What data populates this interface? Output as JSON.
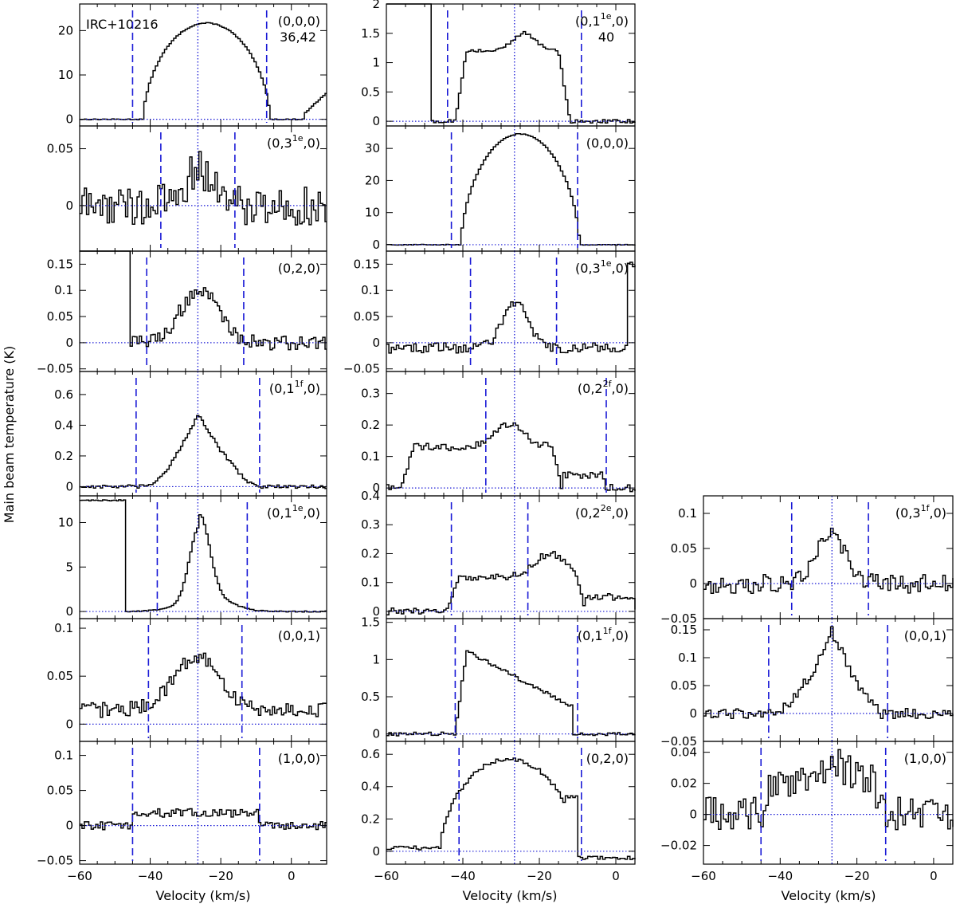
{
  "colors": {
    "spectrum": "#000000",
    "guide": "#1a1ad6",
    "axes": "#000000"
  },
  "figure": {
    "ylabel": "Main beam temperature (K)",
    "xlabel": "Velocity  (km/s)",
    "source_label": "IRC+10216"
  },
  "chart_data": [
    {
      "type": "line",
      "drawstyle": "steps",
      "column": 0,
      "row": 0,
      "label": "(0,0,0)",
      "label_sub": "36,42",
      "xlim": [
        -60,
        10
      ],
      "ylim": [
        -1.5,
        26
      ],
      "yticks": [
        0,
        10,
        20
      ],
      "ytick_labels": [
        "0",
        "10",
        "20"
      ],
      "xticks": [
        -60,
        -40,
        -20,
        0
      ],
      "xtick_labels": [
        "",
        "",
        "",
        ""
      ],
      "dashed_lines": [
        -45,
        -7
      ],
      "center_velocity": -26.5,
      "profile": {
        "kind": "parabola",
        "center": -24,
        "half_width": 18,
        "peak": 21.7,
        "noise": 0.1,
        "extra": [
          {
            "v0": 4,
            "v1": 10,
            "y0": 1.5,
            "y1": 6
          }
        ]
      }
    },
    {
      "type": "line",
      "drawstyle": "steps",
      "column": 0,
      "row": 1,
      "label": "(0,3",
      "label_sup": "1e",
      "label_end": ",0)",
      "xlim": [
        -60,
        10
      ],
      "ylim": [
        -0.04,
        0.07
      ],
      "yticks": [
        0,
        0.05
      ],
      "ytick_labels": [
        "0",
        "0.05"
      ],
      "xticks": [
        -60,
        -40,
        -20,
        0
      ],
      "xtick_labels": [
        "",
        "",
        "",
        ""
      ],
      "dashed_lines": [
        -37,
        -16
      ],
      "center_velocity": -26.5,
      "profile": {
        "kind": "gauss",
        "center": -26,
        "sigma": 4.5,
        "peak": 0.03,
        "noise": 0.018
      }
    },
    {
      "type": "line",
      "drawstyle": "steps",
      "column": 0,
      "row": 2,
      "label": "(0,2,0)",
      "xlim": [
        -60,
        10
      ],
      "ylim": [
        -0.055,
        0.175
      ],
      "yticks": [
        -0.05,
        0,
        0.05,
        0.1,
        0.15
      ],
      "ytick_labels": [
        "−0.05",
        "0",
        "0.05",
        "0.1",
        "0.15"
      ],
      "xticks": [
        -60,
        -40,
        -20,
        0
      ],
      "xtick_labels": [
        "",
        "",
        "",
        ""
      ],
      "dashed_lines": [
        -41,
        -13.5
      ],
      "center_velocity": -26.5,
      "profile": {
        "kind": "gauss",
        "center": -26,
        "sigma": 5.5,
        "peak": 0.1,
        "noise": 0.014,
        "wall": {
          "start": -60,
          "end": -46,
          "value": 0.3
        }
      }
    },
    {
      "type": "line",
      "drawstyle": "steps",
      "column": 0,
      "row": 3,
      "label": "(0,1",
      "label_sup": "1f",
      "label_end": ",0)",
      "xlim": [
        -60,
        10
      ],
      "ylim": [
        -0.06,
        0.75
      ],
      "yticks": [
        0,
        0.2,
        0.4,
        0.6
      ],
      "ytick_labels": [
        "0",
        "0.2",
        "0.4",
        "0.6"
      ],
      "xticks": [
        -60,
        -40,
        -20,
        0
      ],
      "xtick_labels": [
        "",
        "",
        "",
        ""
      ],
      "dashed_lines": [
        -44,
        -9
      ],
      "center_velocity": -26.5,
      "profile": {
        "kind": "triangle",
        "center": -26.5,
        "left": 15,
        "right": 17,
        "peak": 0.47,
        "noise": 0.012
      }
    },
    {
      "type": "line",
      "drawstyle": "steps",
      "column": 0,
      "row": 4,
      "label": "(0,1",
      "label_sup": "1e",
      "label_end": ",0)",
      "xlim": [
        -60,
        10
      ],
      "ylim": [
        -0.8,
        13
      ],
      "yticks": [
        0,
        5,
        10
      ],
      "ytick_labels": [
        "0",
        "5",
        "10"
      ],
      "xticks": [
        -60,
        -40,
        -20,
        0
      ],
      "xtick_labels": [
        "",
        "",
        "",
        ""
      ],
      "dashed_lines": [
        -38,
        -12.5
      ],
      "center_velocity": -26.5,
      "profile": {
        "kind": "gauss",
        "center": -26,
        "sigma": 2.8,
        "peak": 8.7,
        "noise": 0.06,
        "wall": {
          "start": -60,
          "end": -47,
          "value": 12.5
        },
        "wing": {
          "peak": 2.2,
          "sigma": 7
        }
      }
    },
    {
      "type": "line",
      "drawstyle": "steps",
      "column": 0,
      "row": 5,
      "label": "(0,0,1)",
      "xlim": [
        -60,
        10
      ],
      "ylim": [
        -0.018,
        0.11
      ],
      "yticks": [
        0,
        0.05,
        0.1
      ],
      "ytick_labels": [
        "0",
        "0.05",
        "0.1"
      ],
      "xticks": [
        -60,
        -40,
        -20,
        0
      ],
      "xtick_labels": [
        "",
        "",
        "",
        ""
      ],
      "dashed_lines": [
        -40.5,
        -14
      ],
      "center_velocity": -26.5,
      "profile": {
        "kind": "gauss",
        "center": -27,
        "sigma": 6.5,
        "peak": 0.055,
        "noise": 0.008,
        "offset": 0.015
      }
    },
    {
      "type": "line",
      "drawstyle": "steps",
      "column": 0,
      "row": 6,
      "label": "(1,0,0)",
      "xlim": [
        -60,
        10
      ],
      "ylim": [
        -0.055,
        0.12
      ],
      "yticks": [
        -0.05,
        0,
        0.05,
        0.1
      ],
      "ytick_labels": [
        "−0.05",
        "0",
        "0.05",
        "0.1"
      ],
      "xticks": [
        -60,
        -40,
        -20,
        0
      ],
      "xtick_labels": [
        "−60",
        "−40",
        "−20",
        "0"
      ],
      "dashed_lines": [
        -45,
        -9
      ],
      "center_velocity": -26.5,
      "profile": {
        "kind": "flat",
        "from": -45,
        "to": -9,
        "level": 0.018,
        "noise": 0.006
      }
    },
    {
      "type": "line",
      "drawstyle": "steps",
      "column": 1,
      "row": 0,
      "label": "(0,1",
      "label_sup": "1e",
      "label_end": ",0)",
      "label_sub": "40",
      "xlim": [
        -60,
        5
      ],
      "ylim": [
        -0.08,
        2
      ],
      "yticks": [
        0,
        0.5,
        1,
        1.5,
        2
      ],
      "ytick_labels": [
        "0",
        "0.5",
        "1",
        "1.5",
        "2"
      ],
      "xticks": [
        -60,
        -40,
        -20,
        0
      ],
      "xtick_labels": [
        "",
        "",
        "",
        ""
      ],
      "dashed_lines": [
        -44,
        -9
      ],
      "center_velocity": -26.5,
      "profile": {
        "kind": "plateau",
        "from": -42,
        "to": -12,
        "level": 1.2,
        "bump": {
          "center": -24,
          "height": 0.3,
          "sigma": 3
        },
        "noise": 0.03,
        "wall": {
          "start": -60,
          "end": -48,
          "value": 2.2
        }
      }
    },
    {
      "type": "line",
      "drawstyle": "steps",
      "column": 1,
      "row": 1,
      "label": "(0,0,0)",
      "xlim": [
        -60,
        5
      ],
      "ylim": [
        -2,
        37
      ],
      "yticks": [
        0,
        10,
        20,
        30
      ],
      "ytick_labels": [
        "0",
        "10",
        "20",
        "30"
      ],
      "xticks": [
        -60,
        -40,
        -20,
        0
      ],
      "xtick_labels": [
        "",
        "",
        "",
        ""
      ],
      "dashed_lines": [
        -43,
        -10
      ],
      "center_velocity": -26.5,
      "profile": {
        "kind": "parabola",
        "center": -25,
        "half_width": 15.5,
        "peak": 34.5,
        "noise": 0.12
      }
    },
    {
      "type": "line",
      "drawstyle": "steps",
      "column": 1,
      "row": 2,
      "label": "(0,3",
      "label_sup": "1e",
      "label_end": ",0)",
      "xlim": [
        -60,
        5
      ],
      "ylim": [
        -0.055,
        0.175
      ],
      "yticks": [
        -0.05,
        0,
        0.05,
        0.1,
        0.15
      ],
      "ytick_labels": [
        "−0.05",
        "0",
        "0.05",
        "0.1",
        "0.15"
      ],
      "xticks": [
        -60,
        -40,
        -20,
        0
      ],
      "xtick_labels": [
        "",
        "",
        "",
        ""
      ],
      "dashed_lines": [
        -38,
        -15.5
      ],
      "center_velocity": -26.5,
      "profile": {
        "kind": "gauss",
        "center": -26.5,
        "sigma": 3.2,
        "peak": 0.09,
        "noise": 0.01,
        "offset": -0.01,
        "tailwall": {
          "start": 3,
          "value": 0.15
        }
      }
    },
    {
      "type": "line",
      "drawstyle": "steps",
      "column": 1,
      "row": 3,
      "label": "(0,2",
      "label_sup": "2f",
      "label_end": ",0)",
      "xlim": [
        -60,
        5
      ],
      "ylim": [
        -0.025,
        0.37
      ],
      "yticks": [
        0,
        0.1,
        0.2,
        0.3
      ],
      "ytick_labels": [
        "0",
        "0.1",
        "0.2",
        "0.3"
      ],
      "xticks": [
        -60,
        -40,
        -20,
        0
      ],
      "xtick_labels": [
        "",
        "",
        "",
        ""
      ],
      "dashed_lines": [
        -34,
        -2.5
      ],
      "center_velocity": -26.5,
      "profile": {
        "kind": "plateau",
        "from": -56,
        "to": -14,
        "level": 0.13,
        "bump": {
          "center": -28,
          "height": 0.07,
          "sigma": 4
        },
        "noise": 0.012,
        "tail": {
          "from": -14,
          "to": -3,
          "level": 0.04
        }
      }
    },
    {
      "type": "line",
      "drawstyle": "steps",
      "column": 1,
      "row": 4,
      "label": "(0,2",
      "label_sup": "2e",
      "label_end": ",0)",
      "xlim": [
        -60,
        5
      ],
      "ylim": [
        -0.025,
        0.4
      ],
      "yticks": [
        0,
        0.1,
        0.2,
        0.3,
        0.4
      ],
      "ytick_labels": [
        "0",
        "0.1",
        "0.2",
        "0.3",
        "0.4"
      ],
      "xticks": [
        -60,
        -40,
        -20,
        0
      ],
      "xtick_labels": [
        "",
        "",
        "",
        ""
      ],
      "dashed_lines": [
        -43,
        -23
      ],
      "center_velocity": -26.5,
      "profile": {
        "kind": "plateau",
        "from": -44,
        "to": -8,
        "level": 0.12,
        "bump": {
          "center": -17,
          "height": 0.08,
          "sigma": 4
        },
        "noise": 0.012,
        "tail": {
          "from": -8,
          "to": 5,
          "level": 0.05
        }
      }
    },
    {
      "type": "line",
      "drawstyle": "steps",
      "column": 1,
      "row": 5,
      "label": "(0,1",
      "label_sup": "1f",
      "label_end": ",0)",
      "xlim": [
        -60,
        5
      ],
      "ylim": [
        -0.1,
        1.55
      ],
      "yticks": [
        0,
        0.5,
        1,
        1.5
      ],
      "ytick_labels": [
        "0",
        "0.5",
        "1",
        "1.5"
      ],
      "xticks": [
        -60,
        -40,
        -20,
        0
      ],
      "xtick_labels": [
        "",
        "",
        "",
        ""
      ],
      "dashed_lines": [
        -42,
        -10
      ],
      "center_velocity": -26.5,
      "profile": {
        "kind": "ramp",
        "from": -42,
        "to": -11,
        "start": 1.2,
        "end": 0.35,
        "rise": 3,
        "noise": 0.025
      }
    },
    {
      "type": "line",
      "drawstyle": "steps",
      "column": 1,
      "row": 6,
      "label": "(0,2,0)",
      "xlim": [
        -60,
        5
      ],
      "ylim": [
        -0.08,
        0.68
      ],
      "yticks": [
        0,
        0.2,
        0.4,
        0.6
      ],
      "ytick_labels": [
        "0",
        "0.2",
        "0.4",
        "0.6"
      ],
      "xticks": [
        -60,
        -40,
        -20,
        0
      ],
      "xtick_labels": [
        "−60",
        "−40",
        "−20",
        "0"
      ],
      "dashed_lines": [
        -41,
        -9
      ],
      "center_velocity": -26.5,
      "profile": {
        "kind": "parabola",
        "center": -28,
        "half_width": 18,
        "peak": 0.57,
        "noise": 0.012,
        "flat_after": -13,
        "offset_left": 0.02,
        "offset_right": -0.04
      }
    },
    {
      "type": "line",
      "drawstyle": "steps",
      "column": 2,
      "row": 4,
      "label": "(0,3",
      "label_sup": "1f",
      "label_end": ",0)",
      "xlim": [
        -60,
        5
      ],
      "ylim": [
        -0.05,
        0.125
      ],
      "yticks": [
        -0.05,
        0,
        0.05,
        0.1
      ],
      "ytick_labels": [
        "−0.05",
        "0",
        "0.05",
        "0.1"
      ],
      "xticks": [
        -60,
        -40,
        -20,
        0
      ],
      "xtick_labels": [
        "",
        "",
        "",
        ""
      ],
      "dashed_lines": [
        -37,
        -17
      ],
      "center_velocity": -26.5,
      "profile": {
        "kind": "gauss",
        "center": -26.5,
        "sigma": 4,
        "peak": 0.07,
        "noise": 0.014
      }
    },
    {
      "type": "line",
      "drawstyle": "steps",
      "column": 2,
      "row": 5,
      "label": "(0,0,1)",
      "xlim": [
        -60,
        5
      ],
      "ylim": [
        -0.05,
        0.17
      ],
      "yticks": [
        -0.05,
        0,
        0.05,
        0.1,
        0.15
      ],
      "ytick_labels": [
        "−0.05",
        "0",
        "0.05",
        "0.1",
        "0.15"
      ],
      "xticks": [
        -60,
        -40,
        -20,
        0
      ],
      "xtick_labels": [
        "",
        "",
        "",
        ""
      ],
      "dashed_lines": [
        -43,
        -12
      ],
      "center_velocity": -26.5,
      "profile": {
        "kind": "triangle",
        "center": -26.5,
        "left": 15,
        "right": 13,
        "peak": 0.15,
        "noise": 0.01
      }
    },
    {
      "type": "line",
      "drawstyle": "steps",
      "column": 2,
      "row": 6,
      "label": "(1,0,0)",
      "xlim": [
        -60,
        5
      ],
      "ylim": [
        -0.032,
        0.047
      ],
      "yticks": [
        -0.02,
        0,
        0.02,
        0.04
      ],
      "ytick_labels": [
        "−0.02",
        "0",
        "0.02",
        "0.04"
      ],
      "xticks": [
        -60,
        -40,
        -20,
        0
      ],
      "xtick_labels": [
        "−60",
        "−40",
        "−20",
        "0"
      ],
      "dashed_lines": [
        -45,
        -12.5
      ],
      "center_velocity": -26.5,
      "profile": {
        "kind": "plateau",
        "from": -45,
        "to": -13,
        "level": 0.022,
        "bump": {
          "center": -26,
          "height": 0.01,
          "sigma": 4
        },
        "noise": 0.011
      }
    }
  ]
}
